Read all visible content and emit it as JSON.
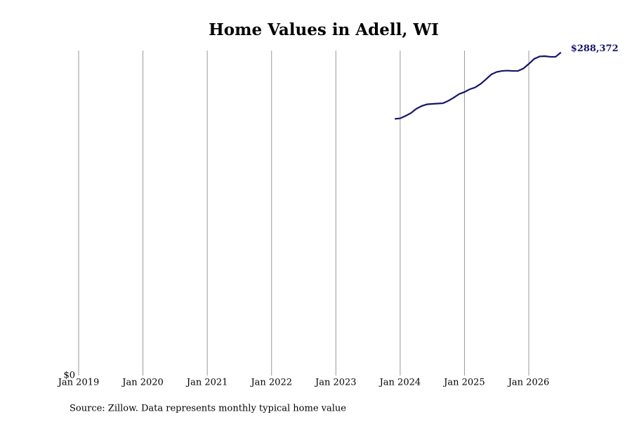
{
  "chart_data": {
    "type": "line",
    "title": "Home Values in Adell, WI",
    "x": [
      "2023-12",
      "2024-01",
      "2024-02",
      "2024-03",
      "2024-04",
      "2024-05",
      "2024-06",
      "2024-07",
      "2024-08",
      "2024-09",
      "2024-10",
      "2024-11",
      "2024-12",
      "2025-01",
      "2025-02",
      "2025-03",
      "2025-04",
      "2025-05",
      "2025-06",
      "2025-07",
      "2025-08",
      "2025-09",
      "2025-10",
      "2025-11",
      "2025-12",
      "2026-01",
      "2026-02",
      "2026-03",
      "2026-04",
      "2026-05",
      "2026-06",
      "2026-07"
    ],
    "series": [
      {
        "color": "#14146b",
        "values": [
          229000,
          229500,
          231700,
          234200,
          238000,
          240500,
          242000,
          242400,
          242700,
          243000,
          245200,
          248000,
          251200,
          253000,
          255500,
          257100,
          260200,
          264300,
          268700,
          270900,
          271800,
          272100,
          271800,
          271800,
          274000,
          278100,
          282500,
          284700,
          285000,
          284400,
          284400,
          288372
        ],
        "value_labels": [
          null,
          null,
          null,
          null,
          null,
          null,
          null,
          null,
          null,
          null,
          null,
          null,
          null,
          null,
          null,
          null,
          null,
          null,
          null,
          null,
          null,
          null,
          null,
          null,
          null,
          null,
          null,
          null,
          null,
          null,
          null,
          "$288,372"
        ]
      }
    ],
    "xlim": [
      "2019-01",
      "2026-07"
    ],
    "xticks": [
      {
        "value": "2019-01",
        "label": "Jan 2019"
      },
      {
        "value": "2020-01",
        "label": "Jan 2020"
      },
      {
        "value": "2021-01",
        "label": "Jan 2021"
      },
      {
        "value": "2022-01",
        "label": "Jan 2022"
      },
      {
        "value": "2023-01",
        "label": "Jan 2023"
      },
      {
        "value": "2024-01",
        "label": "Jan 2024"
      },
      {
        "value": "2025-01",
        "label": "Jan 2025"
      },
      {
        "value": "2026-01",
        "label": "Jan 2026"
      }
    ],
    "ylim": [
      0,
      290000
    ],
    "yticks": [
      {
        "value": 0,
        "label": "$0"
      }
    ],
    "grid": "x",
    "source": "Source: Zillow. Data represents monthly typical home value"
  }
}
